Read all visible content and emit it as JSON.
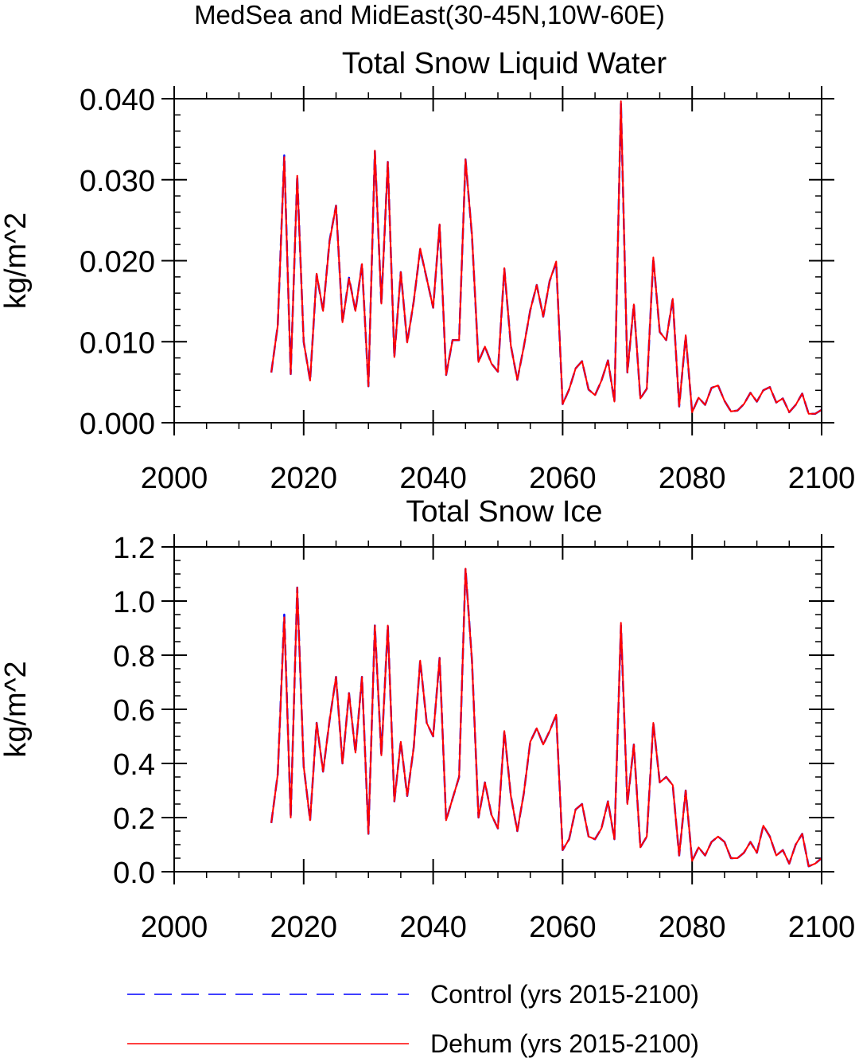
{
  "figure": {
    "title": "MedSea and MidEast(30-45N,10W-60E)"
  },
  "chart_data": [
    {
      "type": "line",
      "title": "Total Snow Liquid Water",
      "xlabel": "",
      "ylabel": "kg/m^2",
      "xlim": [
        2000,
        2100
      ],
      "ylim": [
        0.0,
        0.04
      ],
      "xticks": [
        2000,
        2020,
        2040,
        2060,
        2080,
        2100
      ],
      "xtick_labels": [
        "2000",
        "2020",
        "2040",
        "2060",
        "2080",
        "2100"
      ],
      "yticks": [
        0.0,
        0.01,
        0.02,
        0.03,
        0.04
      ],
      "ytick_labels": [
        "0.000",
        "0.010",
        "0.020",
        "0.030",
        "0.040"
      ],
      "yminor_step": 0.002,
      "xminor_step": 5,
      "grid": false,
      "x": [
        2015,
        2016,
        2017,
        2018,
        2019,
        2020,
        2021,
        2022,
        2023,
        2024,
        2025,
        2026,
        2027,
        2028,
        2029,
        2030,
        2031,
        2032,
        2033,
        2034,
        2035,
        2036,
        2037,
        2038,
        2039,
        2040,
        2041,
        2042,
        2043,
        2044,
        2045,
        2046,
        2047,
        2048,
        2049,
        2050,
        2051,
        2052,
        2053,
        2054,
        2055,
        2056,
        2057,
        2058,
        2059,
        2060,
        2061,
        2062,
        2063,
        2064,
        2065,
        2066,
        2067,
        2068,
        2069,
        2070,
        2071,
        2072,
        2073,
        2074,
        2075,
        2076,
        2077,
        2078,
        2079,
        2080,
        2081,
        2082,
        2083,
        2084,
        2085,
        2086,
        2087,
        2088,
        2089,
        2090,
        2091,
        2092,
        2093,
        2094,
        2095,
        2096,
        2097,
        2098,
        2099,
        2100
      ],
      "series": [
        {
          "name": "Control (yrs 2015-2100)",
          "color": "#0000ff",
          "style": "dashed",
          "values": [
            0.0062,
            0.012,
            0.033,
            0.006,
            0.0305,
            0.01,
            0.0052,
            0.0183,
            0.0138,
            0.0225,
            0.0268,
            0.0124,
            0.0179,
            0.0138,
            0.0196,
            0.0045,
            0.0335,
            0.0147,
            0.0322,
            0.0081,
            0.0186,
            0.0099,
            0.015,
            0.0214,
            0.0178,
            0.0142,
            0.0244,
            0.0059,
            0.0102,
            0.0102,
            0.0325,
            0.0231,
            0.0075,
            0.0094,
            0.0073,
            0.0063,
            0.019,
            0.0095,
            0.0053,
            0.0094,
            0.0139,
            0.017,
            0.0131,
            0.0175,
            0.0198,
            0.0023,
            0.0041,
            0.0067,
            0.0076,
            0.0041,
            0.0034,
            0.0052,
            0.0077,
            0.0026,
            0.0395,
            0.0062,
            0.0146,
            0.003,
            0.0042,
            0.0203,
            0.0112,
            0.0102,
            0.0153,
            0.002,
            0.0107,
            0.0013,
            0.0031,
            0.0022,
            0.0043,
            0.0046,
            0.0027,
            0.0014,
            0.0015,
            0.0023,
            0.0037,
            0.0026,
            0.004,
            0.0044,
            0.0025,
            0.003,
            0.0013,
            0.0022,
            0.0036,
            0.0011,
            0.0011,
            0.0016
          ]
        },
        {
          "name": "Dehum (yrs 2015-2100)",
          "color": "#ff0000",
          "style": "solid",
          "values": [
            0.0062,
            0.012,
            0.0328,
            0.006,
            0.0305,
            0.01,
            0.0052,
            0.0184,
            0.0138,
            0.0224,
            0.0268,
            0.0124,
            0.0178,
            0.0138,
            0.0196,
            0.0045,
            0.0336,
            0.0147,
            0.0322,
            0.0081,
            0.0186,
            0.0099,
            0.015,
            0.0215,
            0.0178,
            0.0142,
            0.0245,
            0.0059,
            0.0102,
            0.0102,
            0.0325,
            0.0232,
            0.0075,
            0.0094,
            0.0073,
            0.0063,
            0.0191,
            0.0095,
            0.0053,
            0.0094,
            0.0139,
            0.017,
            0.0131,
            0.0175,
            0.0199,
            0.0023,
            0.0041,
            0.0067,
            0.0076,
            0.0041,
            0.0034,
            0.0052,
            0.0077,
            0.0026,
            0.0397,
            0.0062,
            0.0146,
            0.003,
            0.0042,
            0.0204,
            0.0112,
            0.0102,
            0.0153,
            0.002,
            0.0108,
            0.0013,
            0.0031,
            0.0022,
            0.0043,
            0.0046,
            0.0027,
            0.0014,
            0.0015,
            0.0023,
            0.0037,
            0.0026,
            0.004,
            0.0044,
            0.0025,
            0.003,
            0.0013,
            0.0022,
            0.0036,
            0.0011,
            0.0011,
            0.0016
          ]
        }
      ]
    },
    {
      "type": "line",
      "title": "Total Snow Ice",
      "xlabel": "",
      "ylabel": "kg/m^2",
      "xlim": [
        2000,
        2100
      ],
      "ylim": [
        0.0,
        1.2
      ],
      "xticks": [
        2000,
        2020,
        2040,
        2060,
        2080,
        2100
      ],
      "xtick_labels": [
        "2000",
        "2020",
        "2040",
        "2060",
        "2080",
        "2100"
      ],
      "yticks": [
        0.0,
        0.2,
        0.4,
        0.6,
        0.8,
        1.0,
        1.2
      ],
      "ytick_labels": [
        "0.0",
        "0.2",
        "0.4",
        "0.6",
        "0.8",
        "1.0",
        "1.2"
      ],
      "yminor_step": 0.05,
      "xminor_step": 5,
      "grid": false,
      "x": [
        2015,
        2016,
        2017,
        2018,
        2019,
        2020,
        2021,
        2022,
        2023,
        2024,
        2025,
        2026,
        2027,
        2028,
        2029,
        2030,
        2031,
        2032,
        2033,
        2034,
        2035,
        2036,
        2037,
        2038,
        2039,
        2040,
        2041,
        2042,
        2043,
        2044,
        2045,
        2046,
        2047,
        2048,
        2049,
        2050,
        2051,
        2052,
        2053,
        2054,
        2055,
        2056,
        2057,
        2058,
        2059,
        2060,
        2061,
        2062,
        2063,
        2064,
        2065,
        2066,
        2067,
        2068,
        2069,
        2070,
        2071,
        2072,
        2073,
        2074,
        2075,
        2076,
        2077,
        2078,
        2079,
        2080,
        2081,
        2082,
        2083,
        2084,
        2085,
        2086,
        2087,
        2088,
        2089,
        2090,
        2091,
        2092,
        2093,
        2094,
        2095,
        2096,
        2097,
        2098,
        2099,
        2100
      ],
      "series": [
        {
          "name": "Control (yrs 2015-2100)",
          "color": "#0000ff",
          "style": "dashed",
          "values": [
            0.18,
            0.36,
            0.95,
            0.2,
            1.05,
            0.39,
            0.19,
            0.55,
            0.37,
            0.56,
            0.72,
            0.4,
            0.66,
            0.44,
            0.72,
            0.14,
            0.91,
            0.43,
            0.91,
            0.26,
            0.48,
            0.28,
            0.46,
            0.78,
            0.55,
            0.5,
            0.79,
            0.19,
            0.27,
            0.35,
            1.12,
            0.78,
            0.2,
            0.33,
            0.21,
            0.16,
            0.52,
            0.28,
            0.15,
            0.29,
            0.48,
            0.53,
            0.47,
            0.52,
            0.58,
            0.08,
            0.12,
            0.23,
            0.25,
            0.13,
            0.12,
            0.16,
            0.26,
            0.12,
            0.91,
            0.25,
            0.47,
            0.09,
            0.13,
            0.55,
            0.33,
            0.35,
            0.32,
            0.06,
            0.3,
            0.04,
            0.09,
            0.06,
            0.11,
            0.13,
            0.11,
            0.05,
            0.05,
            0.07,
            0.11,
            0.07,
            0.17,
            0.13,
            0.06,
            0.08,
            0.03,
            0.1,
            0.14,
            0.02,
            0.03,
            0.05
          ]
        },
        {
          "name": "Dehum (yrs 2015-2100)",
          "color": "#ff0000",
          "style": "solid",
          "values": [
            0.18,
            0.36,
            0.94,
            0.2,
            1.05,
            0.39,
            0.19,
            0.55,
            0.37,
            0.56,
            0.72,
            0.4,
            0.66,
            0.44,
            0.72,
            0.14,
            0.91,
            0.43,
            0.91,
            0.26,
            0.48,
            0.28,
            0.46,
            0.78,
            0.55,
            0.5,
            0.79,
            0.19,
            0.27,
            0.35,
            1.12,
            0.78,
            0.2,
            0.33,
            0.21,
            0.16,
            0.52,
            0.28,
            0.15,
            0.29,
            0.48,
            0.53,
            0.47,
            0.52,
            0.58,
            0.08,
            0.12,
            0.23,
            0.25,
            0.13,
            0.12,
            0.16,
            0.26,
            0.12,
            0.92,
            0.25,
            0.47,
            0.09,
            0.13,
            0.55,
            0.33,
            0.35,
            0.32,
            0.06,
            0.3,
            0.04,
            0.09,
            0.06,
            0.11,
            0.13,
            0.11,
            0.05,
            0.05,
            0.07,
            0.11,
            0.07,
            0.17,
            0.13,
            0.06,
            0.08,
            0.03,
            0.1,
            0.14,
            0.02,
            0.03,
            0.05
          ]
        }
      ]
    }
  ],
  "legend": {
    "placement": "bottom-center",
    "items": [
      {
        "label": "Control (yrs 2015-2100)",
        "color": "#0000ff",
        "style": "dashed"
      },
      {
        "label": "Dehum (yrs 2015-2100)",
        "color": "#ff0000",
        "style": "solid"
      }
    ]
  }
}
